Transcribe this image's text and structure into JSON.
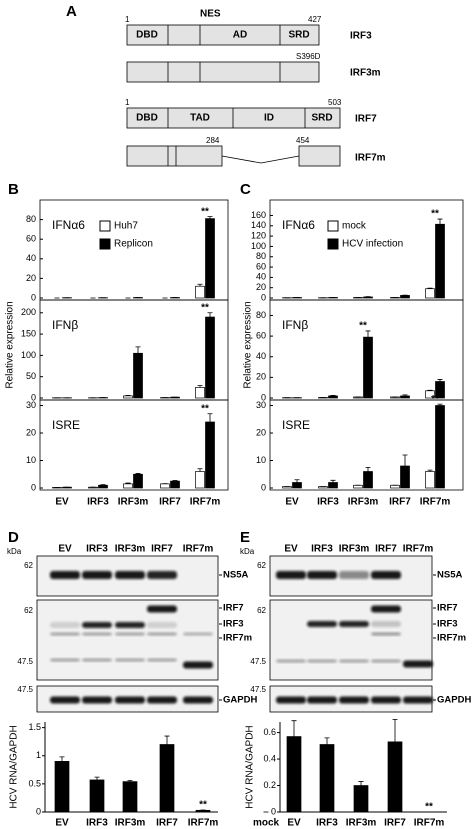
{
  "panel_a": {
    "label": "A",
    "nes": "NES",
    "irf3_start": "1",
    "irf3_end": "427",
    "irf3_domains": [
      "DBD",
      "AD",
      "SRD"
    ],
    "irf3": "IRF3",
    "mutation": "S396D",
    "irf3m": "IRF3m",
    "irf7_start": "1",
    "irf7_end": "503",
    "irf7_domains": [
      "DBD",
      "TAD",
      "ID",
      "SRD"
    ],
    "irf7": "IRF7",
    "deletion_start": "284",
    "deletion_end": "454",
    "irf7m": "IRF7m"
  },
  "chart_data": [
    {
      "type": "bar",
      "panel_label": "B",
      "y_label": "Relative expression",
      "categories": [
        "EV",
        "IRF3",
        "IRF3m",
        "IRF7",
        "IRF7m"
      ],
      "series": [
        {
          "name": "Huh7",
          "color": "#ffffff"
        },
        {
          "name": "Replicon",
          "color": "#000000"
        }
      ],
      "panels": [
        {
          "title": "IFNα6",
          "ylim": [
            0,
            100
          ],
          "yticks": [
            0,
            20,
            40,
            60,
            80
          ],
          "series": [
            {
              "values": [
                0,
                0,
                0,
                0,
                12
              ],
              "errors": [
                0,
                0,
                0,
                0,
                2
              ]
            },
            {
              "values": [
                0.3,
                0.3,
                0.5,
                0.5,
                81
              ],
              "errors": [
                0,
                0,
                0,
                0,
                2
              ]
            }
          ],
          "annotations": [
            {
              "text": "**",
              "category": "IRF7m"
            }
          ]
        },
        {
          "title": "IFNβ",
          "ylim": [
            0,
            230
          ],
          "yticks": [
            0,
            50,
            100,
            150,
            200
          ],
          "series": [
            {
              "values": [
                0.5,
                0.5,
                5,
                1,
                25
              ],
              "errors": [
                0,
                0,
                1,
                0,
                4
              ]
            },
            {
              "values": [
                0.5,
                1,
                105,
                2,
                190
              ],
              "errors": [
                0,
                0,
                15,
                0,
                10
              ]
            }
          ],
          "annotations": [
            {
              "text": "**",
              "category": "IRF7m"
            }
          ]
        },
        {
          "title": "ISRE",
          "ylim": [
            0,
            32
          ],
          "yticks": [
            0,
            10,
            20,
            30
          ],
          "series": [
            {
              "values": [
                0.2,
                0.3,
                1.5,
                1.5,
                6
              ],
              "errors": [
                0,
                0,
                0.3,
                0.1,
                1
              ]
            },
            {
              "values": [
                0.3,
                1,
                5,
                2.5,
                24
              ],
              "errors": [
                0,
                0.2,
                0.3,
                0.2,
                3
              ]
            }
          ],
          "annotations": [
            {
              "text": "**",
              "category": "IRF7m"
            }
          ]
        }
      ]
    },
    {
      "type": "bar",
      "panel_label": "C",
      "y_label": "Relative expression",
      "categories": [
        "EV",
        "IRF3",
        "IRF3m",
        "IRF7",
        "IRF7m"
      ],
      "series": [
        {
          "name": "mock",
          "color": "#ffffff"
        },
        {
          "name": "HCV infection",
          "color": "#000000"
        }
      ],
      "panels": [
        {
          "title": "IFNα6",
          "ylim": [
            0,
            190
          ],
          "yticks": [
            0,
            20,
            40,
            60,
            80,
            100,
            120,
            140,
            160
          ],
          "series": [
            {
              "values": [
                0.5,
                0.5,
                1,
                1,
                18
              ],
              "errors": [
                0,
                0,
                0,
                0,
                1
              ]
            },
            {
              "values": [
                1,
                1,
                2,
                5,
                143
              ],
              "errors": [
                0,
                0,
                0.5,
                0.5,
                10
              ]
            }
          ],
          "annotations": [
            {
              "text": "**",
              "category": "IRF7m"
            }
          ]
        },
        {
          "title": "IFNβ",
          "ylim": [
            0,
            95
          ],
          "yticks": [
            0,
            20,
            40,
            60,
            80
          ],
          "series": [
            {
              "values": [
                0.3,
                0.5,
                1,
                1,
                7
              ],
              "errors": [
                0,
                0,
                0,
                0,
                0.5
              ]
            },
            {
              "values": [
                0.3,
                2,
                59,
                2,
                16
              ],
              "errors": [
                0,
                0.5,
                6,
                1,
                2
              ]
            }
          ],
          "annotations": [
            {
              "text": "**",
              "category": "IRF3m"
            }
          ]
        },
        {
          "title": "ISRE",
          "ylim": [
            0,
            32
          ],
          "yticks": [
            0,
            10,
            20,
            30
          ],
          "series": [
            {
              "values": [
                0.5,
                0.5,
                1,
                1,
                6
              ],
              "errors": [
                0,
                0,
                0,
                0,
                0.5
              ]
            },
            {
              "values": [
                2,
                2,
                6,
                8,
                30
              ],
              "errors": [
                1,
                0.8,
                1.5,
                4,
                0.5
              ]
            }
          ],
          "annotations": [
            {
              "text": "**",
              "category": "IRF7m"
            }
          ]
        }
      ]
    },
    {
      "type": "bar",
      "y_label": "HCV RNA/GAPDH",
      "categories": [
        "EV",
        "IRF3",
        "IRF3m",
        "IRF7",
        "IRF7m"
      ],
      "ylim": [
        0,
        1.6
      ],
      "yticks": [
        0,
        0.5,
        1,
        1.5
      ],
      "series": [
        {
          "color": "#000000",
          "values": [
            0.9,
            0.57,
            0.54,
            1.2,
            0.03
          ],
          "errors": [
            0.08,
            0.05,
            0.02,
            0.15,
            0.005
          ]
        }
      ],
      "annotations": [
        {
          "text": "**",
          "category": "IRF7m"
        }
      ]
    },
    {
      "type": "bar",
      "y_label": "HCV RNA/GAPDH",
      "categories": [
        "mock",
        "EV",
        "IRF3",
        "IRF3m",
        "IRF7",
        "IRF7m"
      ],
      "ylim": [
        0,
        0.68
      ],
      "yticks": [
        0,
        0.2,
        0.4,
        0.6
      ],
      "series": [
        {
          "color": "#000000",
          "values": [
            0,
            0.57,
            0.51,
            0.2,
            0.53,
            0
          ],
          "errors": [
            0,
            0.12,
            0.05,
            0.03,
            0.17,
            0
          ]
        }
      ],
      "annotations": [
        {
          "text": "**",
          "category": "IRF7m"
        }
      ]
    }
  ],
  "blot_d": {
    "label": "D",
    "kda": "kDa",
    "lanes": [
      "EV",
      "IRF3",
      "IRF3m",
      "IRF7",
      "IRF7m"
    ],
    "markers": [
      "62",
      "62",
      "47.5",
      "47.5"
    ],
    "bands": [
      "NS5A",
      "IRF7",
      "IRF3",
      "IRF7m",
      "GAPDH"
    ]
  },
  "blot_e": {
    "label": "E",
    "kda": "kDa",
    "lanes": [
      "EV",
      "IRF3",
      "IRF3m",
      "IRF7",
      "IRF7m"
    ],
    "markers": [
      "62",
      "62",
      "47.5",
      "47.5"
    ],
    "bands": [
      "NS5A",
      "IRF7",
      "IRF3",
      "IRF7m",
      "GAPDH"
    ]
  }
}
